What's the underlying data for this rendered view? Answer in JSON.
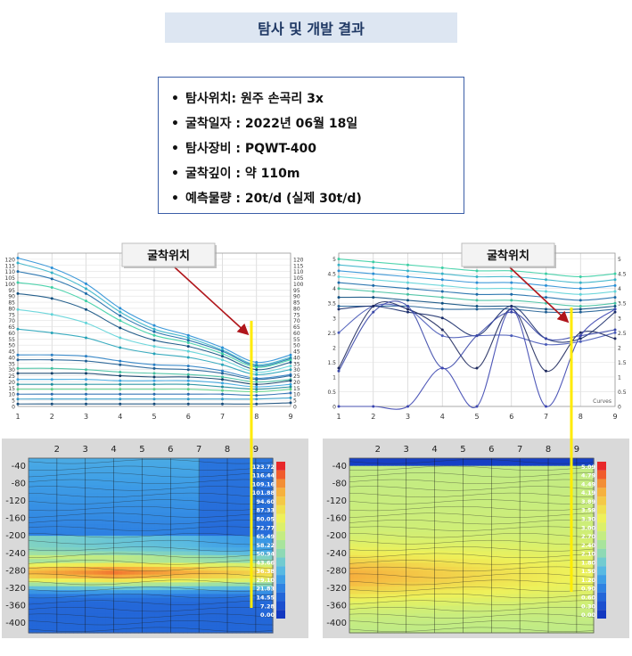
{
  "title": "탐사 및 개발 결과",
  "info": [
    {
      "bullet": "•",
      "text": "탐사위치: 원주 손곡리 3x"
    },
    {
      "bullet": "•",
      "text": "굴착일자 : 2022년 06월 18일"
    },
    {
      "bullet": "•",
      "text": "탐사장비 : PQWT-400"
    },
    {
      "bullet": "•",
      "text": "굴착깊이 : 약 110m"
    },
    {
      "bullet": "•",
      "text": "예측물량 : 20t/d  (실제 30t/d)"
    }
  ],
  "callout_label": "굴착위치",
  "colors": {
    "arrow": "#b0161b",
    "marker": "#ffeb00",
    "accent": "#1f3864"
  },
  "chart_data": [
    {
      "type": "line",
      "x": [
        1,
        2,
        3,
        4,
        5,
        6,
        7,
        8,
        9
      ],
      "ylim": [
        0,
        125
      ],
      "yticks": [
        0,
        5,
        10,
        15,
        20,
        25,
        30,
        35,
        40,
        45,
        50,
        55,
        60,
        65,
        70,
        75,
        80,
        85,
        90,
        95,
        100,
        105,
        110,
        115,
        120
      ],
      "series": [
        {
          "values": [
            121,
            113,
            100,
            80,
            66,
            58,
            48,
            36,
            42
          ]
        },
        {
          "values": [
            117,
            109,
            96,
            77,
            63,
            56,
            46,
            34,
            40
          ]
        },
        {
          "values": [
            110,
            104,
            92,
            74,
            61,
            54,
            45,
            33,
            39
          ]
        },
        {
          "values": [
            101,
            97,
            86,
            70,
            58,
            52,
            43,
            32,
            38
          ]
        },
        {
          "values": [
            92,
            88,
            79,
            64,
            54,
            49,
            41,
            30,
            36
          ]
        },
        {
          "values": [
            79,
            75,
            68,
            56,
            49,
            45,
            38,
            28,
            33
          ]
        },
        {
          "values": [
            63,
            60,
            56,
            48,
            43,
            40,
            34,
            26,
            30
          ]
        },
        {
          "values": [
            42,
            42,
            41,
            37,
            34,
            33,
            29,
            23,
            26
          ]
        },
        {
          "values": [
            38,
            38,
            37,
            34,
            31,
            30,
            27,
            22,
            25
          ]
        },
        {
          "values": [
            31,
            31,
            30,
            28,
            27,
            26,
            24,
            20,
            22
          ]
        },
        {
          "values": [
            27,
            27,
            27,
            25,
            24,
            24,
            22,
            18,
            21
          ]
        },
        {
          "values": [
            22,
            22,
            22,
            21,
            21,
            21,
            19,
            16,
            18
          ]
        },
        {
          "values": [
            18,
            18,
            18,
            18,
            18,
            18,
            16,
            14,
            16
          ]
        },
        {
          "values": [
            14,
            14,
            14,
            14,
            14,
            14,
            13,
            12,
            14
          ]
        },
        {
          "values": [
            10,
            10,
            10,
            10,
            10,
            10,
            10,
            9,
            11
          ]
        },
        {
          "values": [
            6,
            6,
            6,
            6,
            6,
            6,
            6,
            6,
            7
          ]
        },
        {
          "values": [
            2,
            2,
            2,
            2,
            2,
            2,
            2,
            2,
            3
          ]
        }
      ],
      "marker_x": 8
    },
    {
      "type": "line",
      "x": [
        1,
        2,
        3,
        4,
        5,
        6,
        7,
        8,
        9
      ],
      "ylim": [
        0,
        5.2
      ],
      "yticks": [
        0,
        0.5,
        1,
        1.5,
        2,
        2.5,
        3,
        3.5,
        4,
        4.5,
        5
      ],
      "legend": "Curves",
      "series": [
        {
          "values": [
            5.0,
            4.9,
            4.8,
            4.7,
            4.6,
            4.6,
            4.5,
            4.4,
            4.5
          ]
        },
        {
          "values": [
            4.8,
            4.7,
            4.6,
            4.5,
            4.4,
            4.4,
            4.3,
            4.2,
            4.3
          ]
        },
        {
          "values": [
            4.6,
            4.5,
            4.4,
            4.3,
            4.2,
            4.2,
            4.1,
            4.0,
            4.1
          ]
        },
        {
          "values": [
            4.4,
            4.3,
            4.2,
            4.1,
            4.0,
            4.0,
            3.9,
            3.8,
            3.9
          ]
        },
        {
          "values": [
            4.2,
            4.1,
            4.0,
            3.9,
            3.8,
            3.8,
            3.7,
            3.6,
            3.7
          ]
        },
        {
          "values": [
            4.0,
            3.9,
            3.8,
            3.7,
            3.6,
            3.6,
            3.5,
            3.4,
            3.5
          ]
        },
        {
          "values": [
            3.7,
            3.7,
            3.6,
            3.5,
            3.4,
            3.4,
            3.3,
            3.3,
            3.4
          ]
        },
        {
          "values": [
            3.4,
            3.4,
            3.4,
            3.3,
            3.3,
            3.3,
            3.2,
            3.2,
            3.3
          ]
        },
        {
          "values": [
            3.3,
            3.4,
            3.2,
            3.0,
            2.4,
            3.4,
            2.3,
            2.3,
            3.2
          ]
        },
        {
          "values": [
            2.5,
            3.4,
            3.3,
            2.4,
            2.4,
            2.4,
            2.1,
            2.2,
            2.5
          ]
        },
        {
          "values": [
            1.3,
            3.4,
            3.3,
            2.6,
            1.3,
            3.3,
            1.2,
            2.5,
            2.3
          ]
        },
        {
          "values": [
            1.2,
            3.2,
            3.4,
            1.3,
            2.4,
            3.2,
            2.3,
            2.4,
            2.6
          ]
        },
        {
          "values": [
            0,
            0,
            0,
            1.3,
            0,
            3.3,
            0,
            2.4,
            3.3
          ]
        }
      ],
      "marker_x": 8
    },
    {
      "type": "heatmap",
      "x_ticks": [
        "2",
        "3",
        "4",
        "5",
        "6",
        "7",
        "8",
        "9"
      ],
      "y_ticks": [
        "-40",
        "-80",
        "-120",
        "-160",
        "-200",
        "-240",
        "-280",
        "-320",
        "-360",
        "-400"
      ],
      "colorbar": [
        "123.72",
        "116.44",
        "109.16",
        "101.88",
        "94.60",
        "87.33",
        "80.05",
        "72.77",
        "65.49",
        "58.22",
        "50.94",
        "43.66",
        "36.38",
        "29.10",
        "21.83",
        "14.55",
        "7.28",
        "0.00"
      ],
      "colorbar_colors": [
        "#e8282a",
        "#f05b2c",
        "#f38e35",
        "#f6b13e",
        "#f4c947",
        "#f0e050",
        "#eef15a",
        "#dcf06a",
        "#c4ec82",
        "#a8e49c",
        "#8ed9b4",
        "#72cbd0",
        "#58b9e2",
        "#3f9fe6",
        "#2f82e2",
        "#2366d8",
        "#1b4fcf",
        "#1338c0"
      ],
      "marker_x": 8
    },
    {
      "type": "heatmap",
      "x_ticks": [
        "2",
        "3",
        "4",
        "5",
        "6",
        "7",
        "8",
        "9"
      ],
      "y_ticks": [
        "-40",
        "-80",
        "-120",
        "-160",
        "-200",
        "-240",
        "-280",
        "-320",
        "-360",
        "-400"
      ],
      "colorbar": [
        "5.09",
        "4.79",
        "4.49",
        "4.19",
        "3.89",
        "3.59",
        "3.30",
        "3.00",
        "2.70",
        "2.40",
        "2.10",
        "1.80",
        "1.50",
        "1.20",
        "0.90",
        "0.60",
        "0.30",
        "0.00"
      ],
      "colorbar_colors": [
        "#e8282a",
        "#f05b2c",
        "#f38e35",
        "#f6b13e",
        "#f4c947",
        "#f0e050",
        "#eef15a",
        "#dcf06a",
        "#c4ec82",
        "#a8e49c",
        "#8ed9b4",
        "#72cbd0",
        "#58b9e2",
        "#3f9fe6",
        "#2f82e2",
        "#2366d8",
        "#1b4fcf",
        "#1338c0"
      ],
      "marker_x": 8
    }
  ]
}
